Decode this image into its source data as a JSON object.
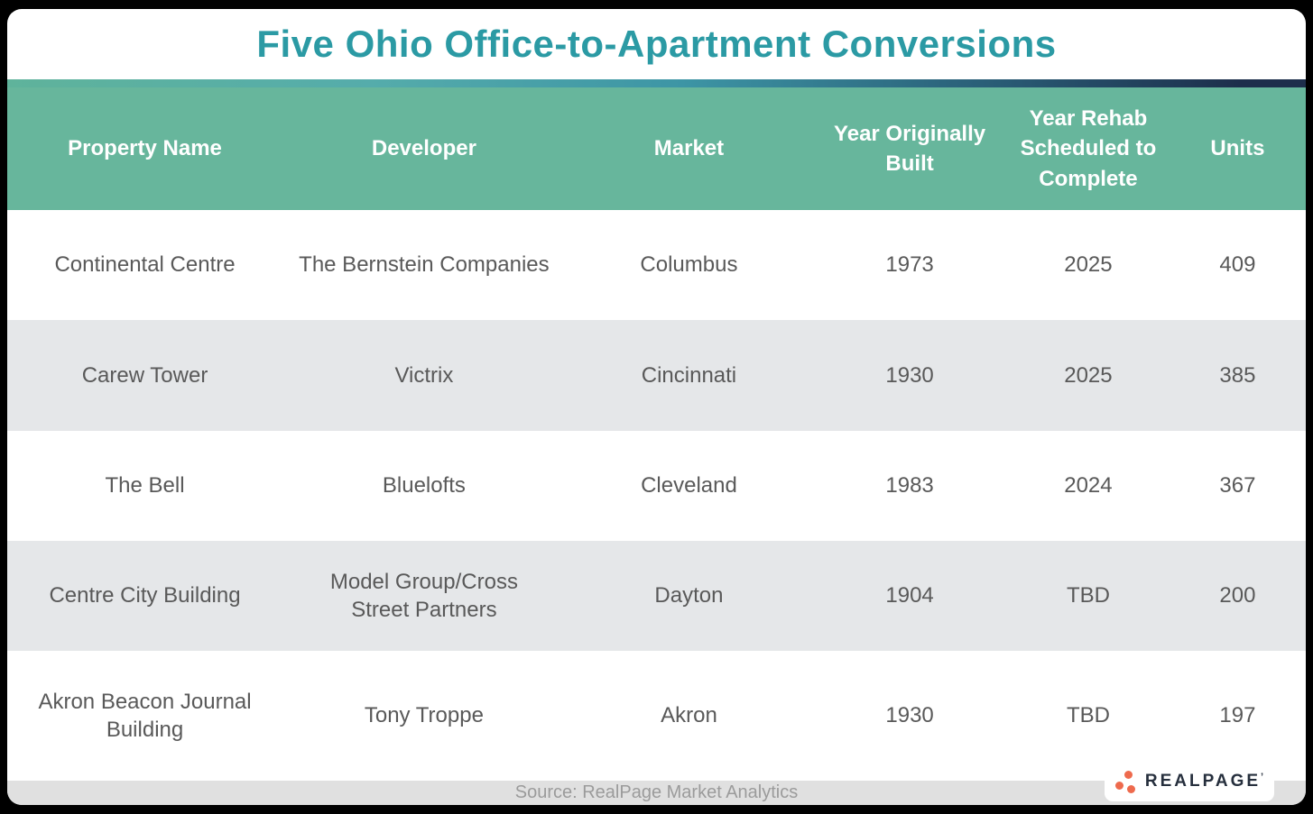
{
  "page": {
    "title": "Five Ohio Office-to-Apartment Conversions"
  },
  "table": {
    "columns": [
      {
        "label": "Property Name"
      },
      {
        "label": "Developer"
      },
      {
        "label": "Market"
      },
      {
        "label": "Year Originally Built"
      },
      {
        "label": "Year Rehab Scheduled to Complete"
      },
      {
        "label": "Units"
      }
    ],
    "rows": [
      {
        "property_name": "Continental Centre",
        "developer": "The Bernstein Companies",
        "market": "Columbus",
        "year_built": "1973",
        "year_rehab": "2025",
        "units": "409"
      },
      {
        "property_name": "Carew Tower",
        "developer": "Victrix",
        "market": "Cincinnati",
        "year_built": "1930",
        "year_rehab": "2025",
        "units": "385"
      },
      {
        "property_name": "The Bell",
        "developer": "Bluelofts",
        "market": "Cleveland",
        "year_built": "1983",
        "year_rehab": "2024",
        "units": "367"
      },
      {
        "property_name": "Centre City Building",
        "developer": "Model Group/Cross Street Partners",
        "market": "Dayton",
        "year_built": "1904",
        "year_rehab": "TBD",
        "units": "200"
      },
      {
        "property_name": "Akron Beacon Journal Building",
        "developer": "Tony Troppe",
        "market": "Akron",
        "year_built": "1930",
        "year_rehab": "TBD",
        "units": "197"
      }
    ]
  },
  "footer": {
    "source": "Source: RealPage Market Analytics",
    "logo_text": "REALPAGE",
    "logo_mark": "’"
  },
  "colors": {
    "title_teal": "#2b9aa4",
    "header_green": "#67b69c",
    "gradient_start": "#5fb39b",
    "gradient_mid": "#3d95a5",
    "gradient_end": "#1d2e4b",
    "row_alt_gray": "#e5e7e9",
    "body_text": "#595959",
    "footer_band_gray": "#e0e0e0",
    "footer_text_gray": "#9b9b9b",
    "logo_orange": "#ee6a4d",
    "logo_navy": "#262f3d"
  },
  "chart_data": {
    "type": "table",
    "title": "Five Ohio Office-to-Apartment Conversions",
    "columns": [
      "Property Name",
      "Developer",
      "Market",
      "Year Originally Built",
      "Year Rehab Scheduled to Complete",
      "Units"
    ],
    "rows": [
      [
        "Continental Centre",
        "The Bernstein Companies",
        "Columbus",
        1973,
        2025,
        409
      ],
      [
        "Carew Tower",
        "Victrix",
        "Cincinnati",
        1930,
        2025,
        385
      ],
      [
        "The Bell",
        "Bluelofts",
        "Cleveland",
        1983,
        2024,
        367
      ],
      [
        "Centre City Building",
        "Model Group/Cross Street Partners",
        "Dayton",
        1904,
        "TBD",
        200
      ],
      [
        "Akron Beacon Journal Building",
        "Tony Troppe",
        "Akron",
        1930,
        "TBD",
        197
      ]
    ],
    "source": "Source: RealPage Market Analytics"
  }
}
